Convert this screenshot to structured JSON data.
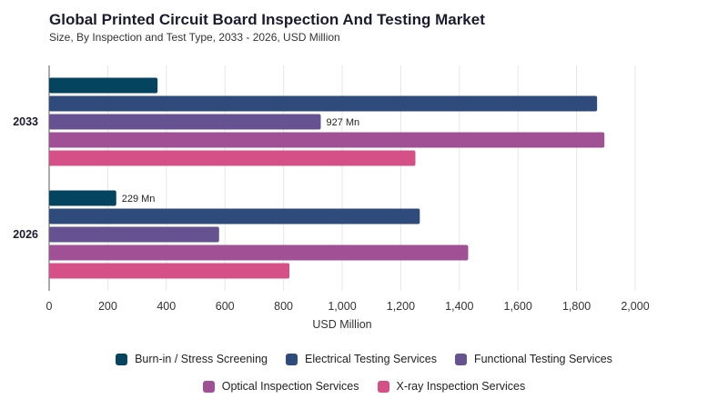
{
  "header": {
    "title": "Global Printed Circuit Board Inspection And Testing Market",
    "subtitle": "Size, By Inspection and Test Type, 2033 - 2026, USD Million"
  },
  "chart_data": {
    "type": "bar",
    "orientation": "horizontal",
    "categories": [
      "2033",
      "2026"
    ],
    "series": [
      {
        "name": "Burn-in / Stress Screening",
        "color": "#05445e",
        "values": [
          370,
          229
        ]
      },
      {
        "name": "Electrical Testing Services",
        "color": "#2f4b7c",
        "values": [
          1870,
          1265
        ]
      },
      {
        "name": "Functional Testing Services",
        "color": "#665191",
        "values": [
          927,
          580
        ]
      },
      {
        "name": "Optical Inspection Services",
        "color": "#a05195",
        "values": [
          1895,
          1430
        ]
      },
      {
        "name": "X-ray Inspection Services",
        "color": "#d45087",
        "values": [
          1250,
          820
        ]
      }
    ],
    "data_labels": [
      {
        "category": "2033",
        "series": "Functional Testing Services",
        "text": "927 Mn"
      },
      {
        "category": "2026",
        "series": "Burn-in / Stress Screening",
        "text": "229 Mn"
      }
    ],
    "xlabel": "USD Million",
    "xlim": [
      0,
      2000
    ],
    "xticks": [
      0,
      200,
      400,
      600,
      800,
      1000,
      1200,
      1400,
      1600,
      1800,
      2000
    ],
    "xtick_labels": [
      "0",
      "200",
      "400",
      "600",
      "800",
      "1,000",
      "1,200",
      "1,400",
      "1,600",
      "1,800",
      "2,000"
    ],
    "grid": true,
    "legend_position": "bottom"
  }
}
